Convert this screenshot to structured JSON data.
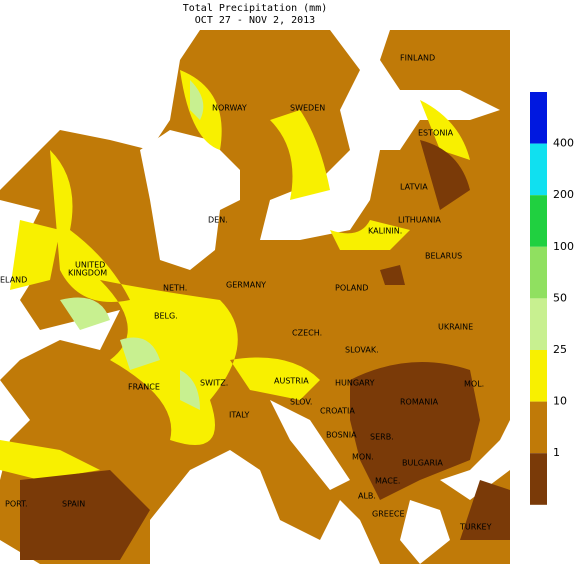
{
  "header": {
    "title": "Total Precipitation (mm)",
    "subtitle": "OCT 27 - NOV 2, 2013"
  },
  "labels": [
    "FINLAND",
    "NORWAY",
    "SWEDEN",
    "ESTONIA",
    "LATVIA",
    "DEN.",
    "LITHUANIA",
    "KALININ.",
    "UNITED",
    "KINGDOM",
    "ELAND",
    "BELARUS",
    "NETH.",
    "GERMANY",
    "POLAND",
    "BELG.",
    "UKRAINE",
    "CZECH.",
    "SLOVAK.",
    "MOL.",
    "FRANCE",
    "SWITZ.",
    "AUSTRIA",
    "HUNGARY",
    "ROMANIA",
    "SLOV.",
    "CROATIA",
    "ITALY",
    "BOSNIA",
    "SERB.",
    "MON.",
    "BULGARIA",
    "MACE.",
    "PORT.",
    "SPAIN",
    "ALB.",
    "GREECE",
    "TURKEY"
  ],
  "legend": {
    "colors": [
      "#0018e0",
      "#10e0f0",
      "#20d040",
      "#90e060",
      "#c8f090",
      "#f8f000",
      "#c07a08",
      "#7a3a08"
    ],
    "labels": [
      400,
      200,
      100,
      50,
      25,
      10,
      1
    ]
  }
}
